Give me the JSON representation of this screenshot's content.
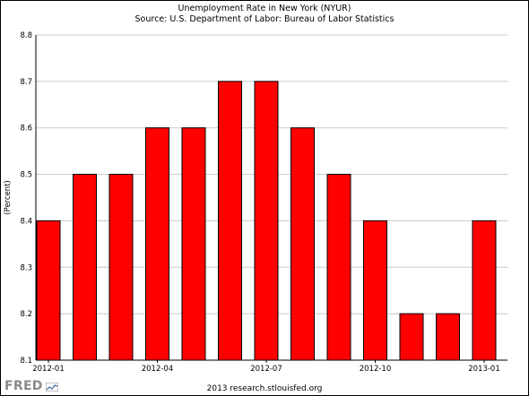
{
  "header": {
    "title": "Unemployment Rate in New York (NYUR)",
    "subtitle": "Source: U.S. Department of Labor: Bureau of Labor Statistics"
  },
  "footer": {
    "logo_text": "FRED",
    "credit": "2013 research.stlouisfed.org"
  },
  "colors": {
    "bar_fill": "#ff0000",
    "bar_stroke": "#000000",
    "grid": "#c8c8c8",
    "background": "#ffffff"
  },
  "chart_data": {
    "type": "bar",
    "title": "Unemployment Rate in New York (NYUR)",
    "subtitle": "Source: U.S. Department of Labor: Bureau of Labor Statistics",
    "xlabel": "",
    "ylabel": "(Percent)",
    "categories": [
      "2012-01",
      "2012-02",
      "2012-03",
      "2012-04",
      "2012-05",
      "2012-06",
      "2012-07",
      "2012-08",
      "2012-09",
      "2012-10",
      "2012-11",
      "2012-12",
      "2013-01"
    ],
    "values": [
      8.4,
      8.5,
      8.5,
      8.6,
      8.6,
      8.7,
      8.7,
      8.6,
      8.5,
      8.4,
      8.2,
      8.2,
      8.4
    ],
    "ylim": [
      8.1,
      8.8
    ],
    "yticks": [
      "8.1",
      "8.2",
      "8.3",
      "8.4",
      "8.5",
      "8.6",
      "8.7",
      "8.8"
    ],
    "xtick_labels": [
      "2012-01",
      "2012-04",
      "2012-07",
      "2012-10",
      "2013-01"
    ],
    "grid": true,
    "legend": "none"
  }
}
